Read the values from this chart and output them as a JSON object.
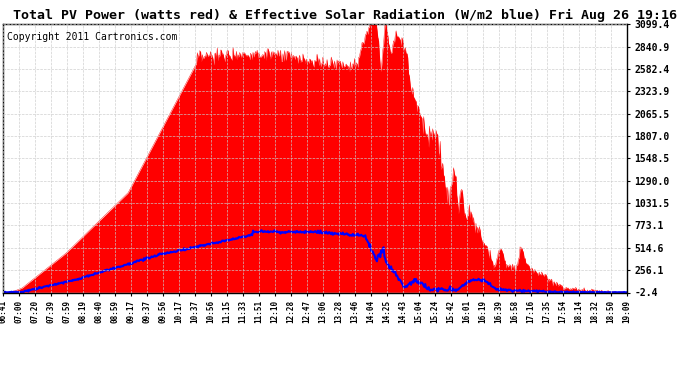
{
  "title": "Total PV Power (watts red) & Effective Solar Radiation (W/m2 blue) Fri Aug 26 19:16",
  "copyright_text": "Copyright 2011 Cartronics.com",
  "y_ticks": [
    -2.4,
    256.1,
    514.6,
    773.1,
    1031.5,
    1290.0,
    1548.5,
    1807.0,
    2065.5,
    2323.9,
    2582.4,
    2840.9,
    3099.4
  ],
  "x_labels": [
    "06:41",
    "07:00",
    "07:20",
    "07:39",
    "07:59",
    "08:19",
    "08:40",
    "08:59",
    "09:17",
    "09:37",
    "09:56",
    "10:17",
    "10:37",
    "10:56",
    "11:15",
    "11:33",
    "11:51",
    "12:10",
    "12:28",
    "12:47",
    "13:06",
    "13:28",
    "13:46",
    "14:04",
    "14:25",
    "14:43",
    "15:04",
    "15:24",
    "15:42",
    "16:01",
    "16:19",
    "16:39",
    "16:58",
    "17:16",
    "17:35",
    "17:54",
    "18:14",
    "18:32",
    "18:50",
    "19:09"
  ],
  "background_color": "#ffffff",
  "plot_bg_color": "#ffffff",
  "grid_color": "#cccccc",
  "title_color": "#000000",
  "red_color": "#ff0000",
  "blue_color": "#0000ff",
  "title_fontsize": 9.5,
  "copyright_fontsize": 7
}
